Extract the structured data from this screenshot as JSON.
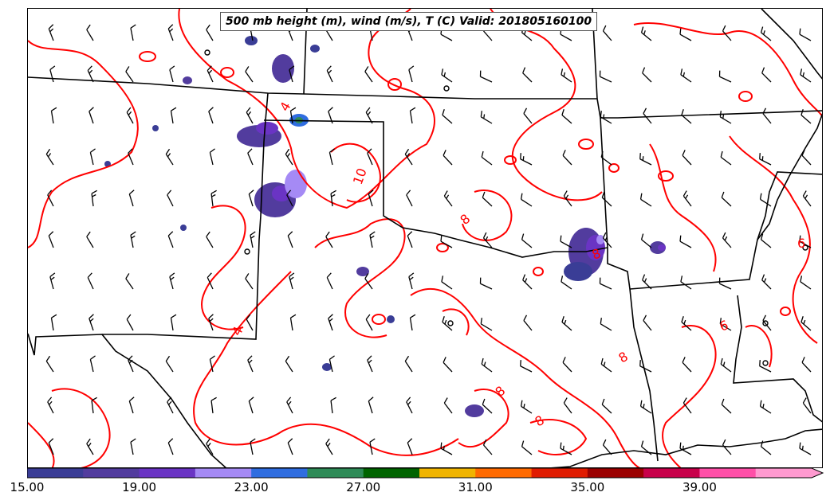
{
  "title": "500 mb height (m), wind (m/s), T (C) Valid: 201805160100",
  "colorbar": {
    "tick_labels": [
      "15.00",
      "19.00",
      "23.00",
      "27.00",
      "31.00",
      "35.00",
      "39.00"
    ],
    "range": [
      15,
      43
    ],
    "colors": [
      "#3a3d96",
      "#523c9e",
      "#6a34c4",
      "#a58af5",
      "#2f6de0",
      "#2e8b57",
      "#006400",
      "#f0b400",
      "#ff6a00",
      "#e01b00",
      "#9b0000",
      "#c8004a",
      "#ff4fa8",
      "#ff9ad0"
    ]
  },
  "contour_labels": [
    "4",
    "10",
    "8",
    "8",
    "8",
    "8",
    "8",
    "4",
    "6",
    "6"
  ],
  "legend_note": "",
  "colors": {
    "temperature_contour": "#ff0000",
    "boundaries": "#000000",
    "wind_barbs": "#000000"
  }
}
